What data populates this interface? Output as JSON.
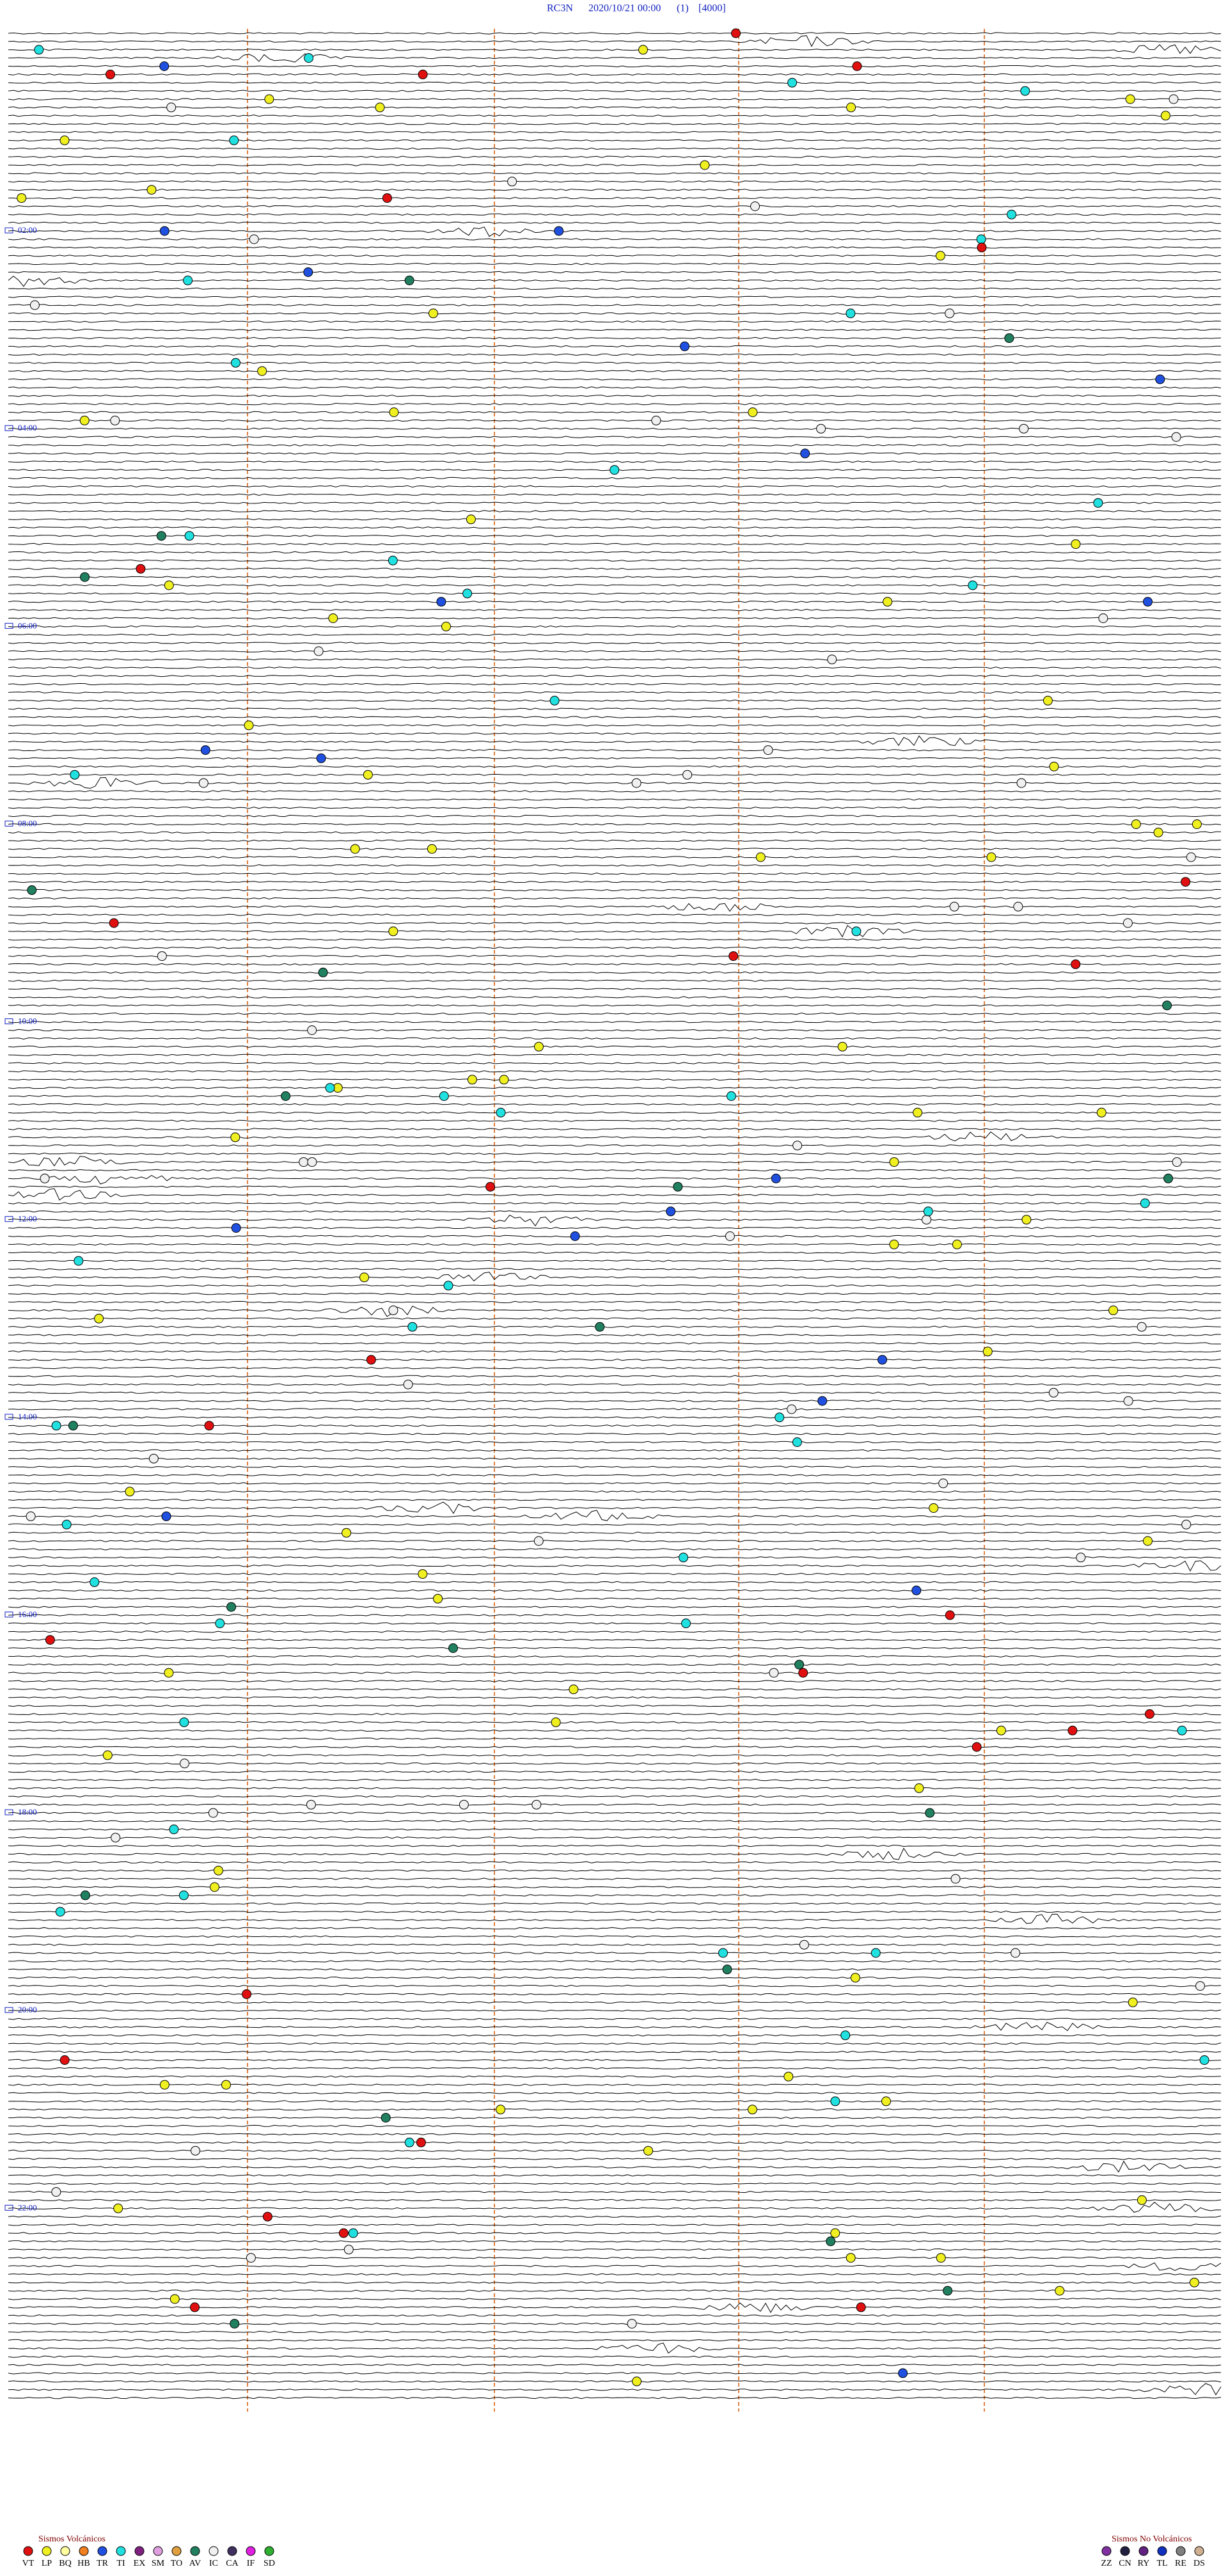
{
  "header": {
    "station": "RC3N",
    "datetime": "2020/10/21 00:00",
    "channel": "(1)",
    "scale": "[4000]"
  },
  "time_labels": [
    "02:00",
    "04:00",
    "06:00",
    "08:00",
    "10:00",
    "12:00",
    "14:00",
    "16:00",
    "18:00",
    "20:00",
    "22:00"
  ],
  "legend_volcanic": {
    "title": "Sismos Volcánicos",
    "items": [
      {
        "code": "VT",
        "color": "#e01010"
      },
      {
        "code": "LP",
        "color": "#f0f020"
      },
      {
        "code": "BQ",
        "color": "#ffffa0"
      },
      {
        "code": "HB",
        "color": "#f08020"
      },
      {
        "code": "TR",
        "color": "#2050e0"
      },
      {
        "code": "TI",
        "color": "#20e0e0"
      },
      {
        "code": "EX",
        "color": "#802080"
      },
      {
        "code": "SM",
        "color": "#e0a0e0"
      },
      {
        "code": "TO",
        "color": "#e0a040"
      },
      {
        "code": "AV",
        "color": "#208060"
      },
      {
        "code": "IC",
        "color": "#f0f0f0"
      },
      {
        "code": "CA",
        "color": "#403060"
      },
      {
        "code": "IF",
        "color": "#e020e0"
      },
      {
        "code": "SD",
        "color": "#30b030"
      }
    ]
  },
  "legend_non_volcanic": {
    "title": "Sismos No Volcánicos",
    "items": [
      {
        "code": "ZZ",
        "color": "#8030a0"
      },
      {
        "code": "CN",
        "color": "#202040"
      },
      {
        "code": "RY",
        "color": "#602080"
      },
      {
        "code": "TL",
        "color": "#1030c0"
      },
      {
        "code": "RE",
        "color": "#808080"
      },
      {
        "code": "DS",
        "color": "#d0b090"
      }
    ]
  }
}
